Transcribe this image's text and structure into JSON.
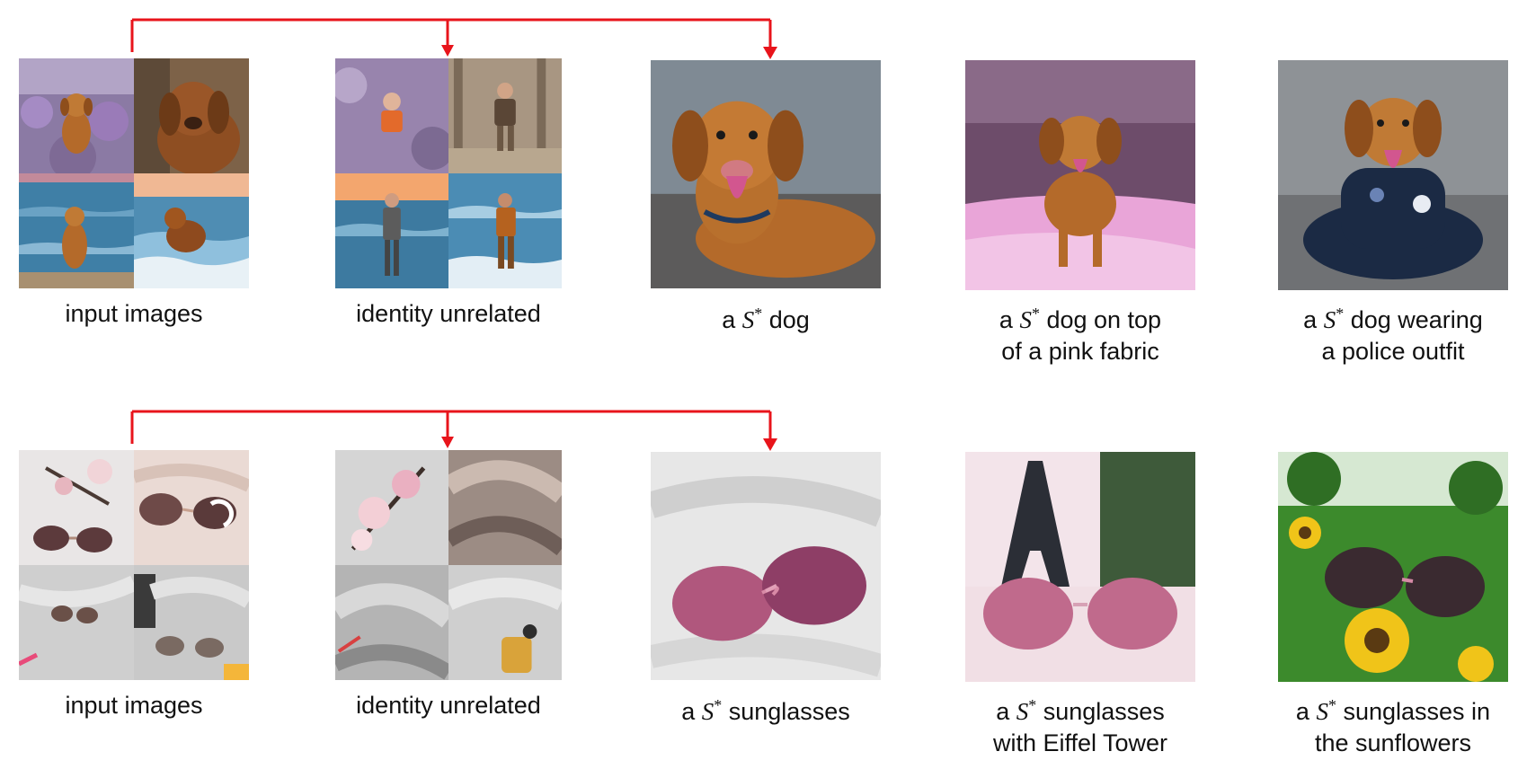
{
  "figure": {
    "rows": [
      {
        "id": "dog",
        "captions": {
          "input": [
            "input images"
          ],
          "unrelated": [
            "identity unrelated"
          ],
          "result1": [
            "a S* dog"
          ],
          "result2": [
            "a S* dog on top",
            "of a pink fabric"
          ],
          "result3": [
            "a S* dog wearing",
            "a police outfit"
          ]
        }
      },
      {
        "id": "sunglasses",
        "captions": {
          "input": [
            "input images"
          ],
          "unrelated": [
            "identity unrelated"
          ],
          "result1": [
            "a S* sunglasses"
          ],
          "result2": [
            "a S* sunglasses",
            "with Eiffel Tower"
          ],
          "result3": [
            "a S* sunglasses in",
            "the sunflowers"
          ]
        }
      }
    ],
    "colors": {
      "arrow": "#e8141b",
      "dog_fur": "#b46a2a",
      "lavender": "#9b7fb5",
      "sea": "#3f7fa6",
      "pink_fabric": "#e9a5d8",
      "police_navy": "#1b2a44",
      "sheet_white": "#e9e6e6",
      "lens_pink": "#b0577d",
      "grass": "#3c8a2c",
      "sunflower": "#f0c419"
    }
  }
}
